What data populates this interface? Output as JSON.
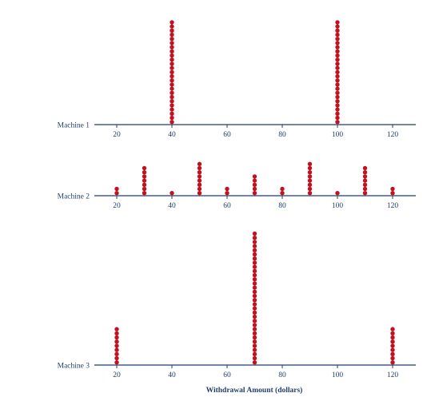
{
  "chart_data": {
    "type": "dot plot",
    "xlabel": "Withdrawal Amount (dollars)",
    "x_ticks": [
      20,
      40,
      60,
      80,
      100,
      120
    ],
    "x_range": [
      20,
      120
    ],
    "dot_color": "#c1121f",
    "axis_color": "#1f3f6e",
    "panels": [
      {
        "label": "Machine 1",
        "points": [
          {
            "x": 40,
            "count": 25
          },
          {
            "x": 100,
            "count": 25
          }
        ]
      },
      {
        "label": "Machine 2",
        "points": [
          {
            "x": 20,
            "count": 2
          },
          {
            "x": 30,
            "count": 7
          },
          {
            "x": 40,
            "count": 1
          },
          {
            "x": 50,
            "count": 8
          },
          {
            "x": 60,
            "count": 2
          },
          {
            "x": 70,
            "count": 5
          },
          {
            "x": 80,
            "count": 2
          },
          {
            "x": 90,
            "count": 8
          },
          {
            "x": 100,
            "count": 1
          },
          {
            "x": 110,
            "count": 7
          },
          {
            "x": 120,
            "count": 2
          }
        ]
      },
      {
        "label": "Machine 3",
        "points": [
          {
            "x": 20,
            "count": 9
          },
          {
            "x": 70,
            "count": 32
          },
          {
            "x": 120,
            "count": 9
          }
        ]
      }
    ]
  }
}
